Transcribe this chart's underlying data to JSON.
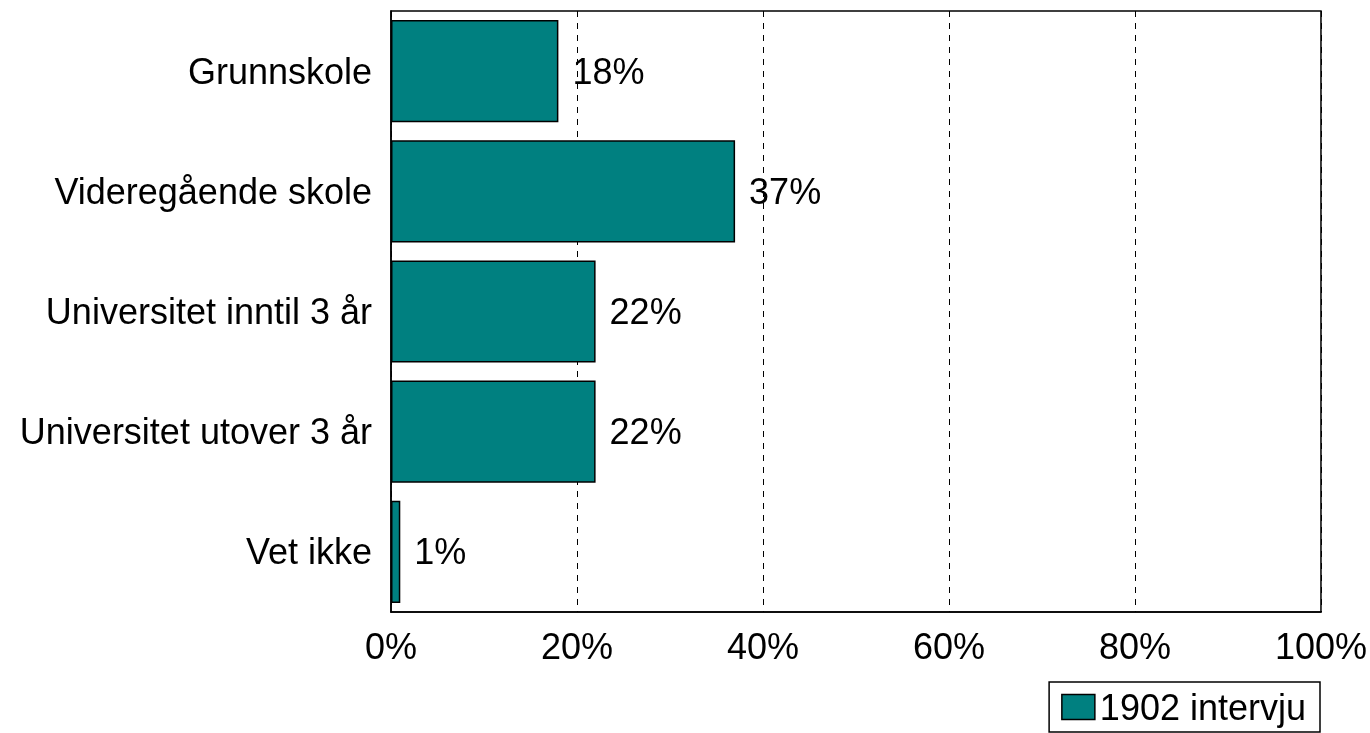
{
  "chart_data": {
    "type": "bar",
    "orientation": "horizontal",
    "categories": [
      "Grunnskole",
      "Videregående skole",
      "Universitet inntil 3 år",
      "Universitet utover 3 år",
      "Vet ikke"
    ],
    "series": [
      {
        "name": "1902 intervju",
        "color": "#008080",
        "values": [
          18,
          37,
          22,
          22,
          1
        ],
        "value_labels": [
          "18%",
          "37%",
          "22%",
          "22%",
          "1%"
        ]
      }
    ],
    "xlim": [
      0,
      100
    ],
    "xticks": [
      {
        "value": 0,
        "label": "0%"
      },
      {
        "value": 20,
        "label": "20%"
      },
      {
        "value": 40,
        "label": "40%"
      },
      {
        "value": 60,
        "label": "60%"
      },
      {
        "value": 80,
        "label": "80%"
      },
      {
        "value": 100,
        "label": "100%"
      }
    ],
    "grid": "x",
    "legend": "bottom right"
  }
}
